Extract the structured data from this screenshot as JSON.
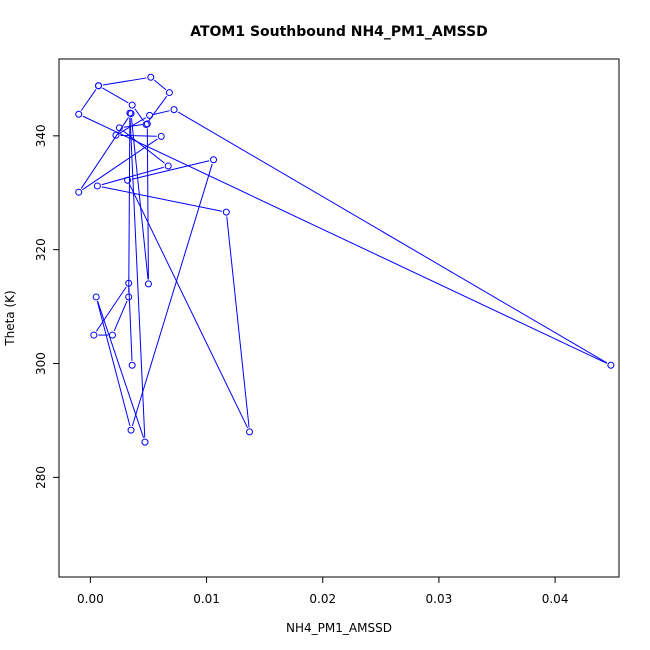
{
  "chart_data": {
    "type": "line",
    "title": "ATOM1 Southbound NH4_PM1_AMSSD",
    "xlabel": "NH4_PM1_AMSSD",
    "ylabel": "Theta (K)",
    "xlim": [
      -0.0027,
      0.0455
    ],
    "ylim": [
      262.5,
      353.5
    ],
    "xticks": [
      0.0,
      0.01,
      0.02,
      0.03,
      0.04
    ],
    "xtick_labels": [
      "0.00",
      "0.01",
      "0.02",
      "0.03",
      "0.04"
    ],
    "yticks": [
      280,
      300,
      320,
      340
    ],
    "ytick_labels": [
      "280",
      "300",
      "320",
      "340"
    ],
    "grid": false,
    "series": [
      {
        "color": "#0000ff",
        "marker": "open-circle",
        "x": [
          0.0007,
          0.0052,
          0.0068,
          0.0048,
          0.0036,
          0.0007,
          -0.001,
          0.0448,
          0.0072,
          0.0051,
          0.0022,
          0.0061,
          -0.001,
          0.0035,
          0.005,
          0.0049,
          0.0025,
          0.0067,
          0.0006,
          0.0117,
          0.0137,
          0.0032,
          0.0106,
          0.0035,
          0.0005,
          0.0047,
          0.0034,
          0.0033,
          0.0019,
          0.0003,
          0.0033,
          0.0036
        ],
        "y": [
          348.8,
          350.3,
          347.6,
          342.0,
          345.4,
          348.8,
          343.8,
          299.7,
          344.6,
          343.6,
          340.1,
          339.9,
          330.1,
          343.9,
          314.0,
          342.1,
          341.4,
          334.7,
          331.2,
          326.6,
          288.0,
          332.2,
          335.8,
          288.3,
          311.7,
          286.2,
          344.0,
          311.7,
          305.0,
          305.0,
          314.1,
          299.7
        ]
      }
    ]
  }
}
